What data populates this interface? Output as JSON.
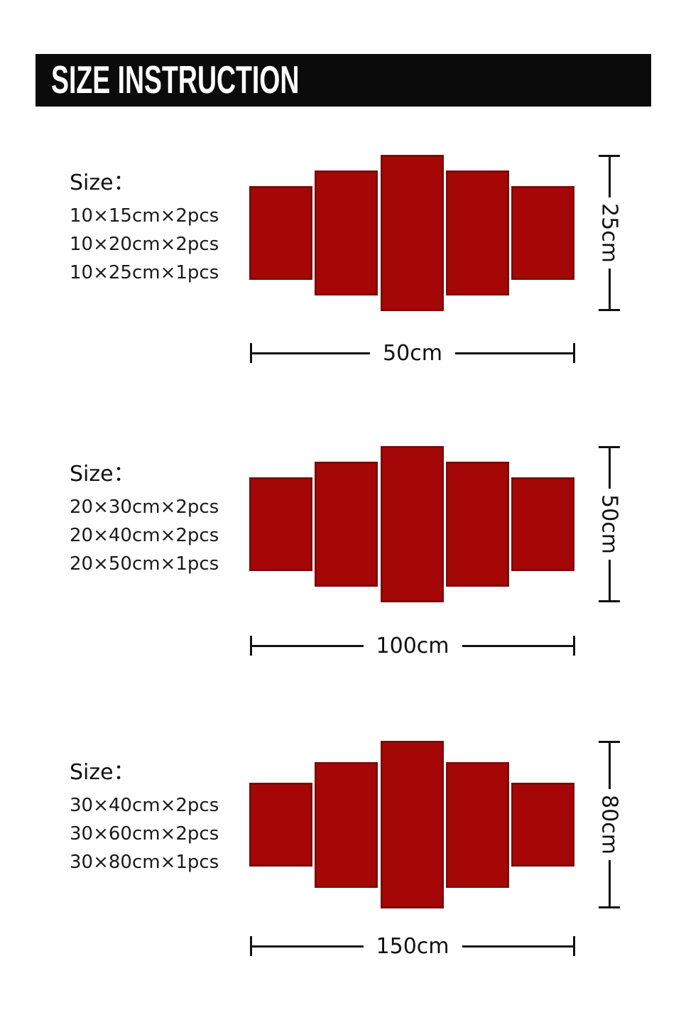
{
  "header": {
    "title": "SIZE INSTRUCTION"
  },
  "sections": [
    {
      "size_label": "Size：",
      "pieces": [
        "10×15cm×2pcs",
        "10×20cm×2pcs",
        "10×25cm×1pcs"
      ],
      "height_label": "25cm",
      "width_label": "50cm",
      "panel_heights_cm": [
        15,
        20,
        25,
        20,
        15
      ]
    },
    {
      "size_label": "Size：",
      "pieces": [
        "20×30cm×2pcs",
        "20×40cm×2pcs",
        "20×50cm×1pcs"
      ],
      "height_label": "50cm",
      "width_label": "100cm",
      "panel_heights_cm": [
        30,
        40,
        50,
        40,
        30
      ]
    },
    {
      "size_label": "Size：",
      "pieces": [
        "30×40cm×2pcs",
        "30×60cm×2pcs",
        "30×80cm×1pcs"
      ],
      "height_label": "80cm",
      "width_label": "150cm",
      "panel_heights_cm": [
        40,
        60,
        80,
        60,
        40
      ]
    }
  ],
  "colors": {
    "panel_fill": "#a50707",
    "panel_border": "#7d0b0b",
    "header_bg": "#0b0b0b",
    "header_text": "#ffffff",
    "line_color": "#111111"
  }
}
